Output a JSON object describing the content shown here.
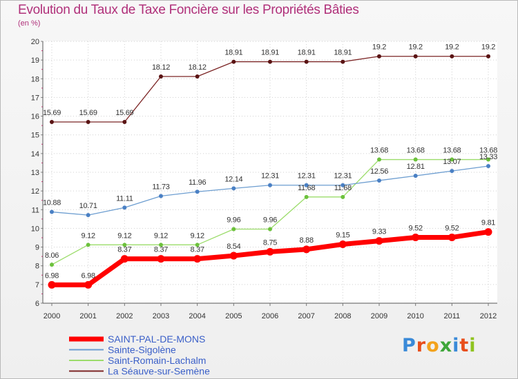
{
  "title": "Evolution du Taux de Taxe Foncière sur les Propriétés Bâties",
  "subtitle": "(en %)",
  "logo": {
    "letters": [
      "P",
      "r",
      "o",
      "x",
      "i",
      "t",
      "i"
    ],
    "colors": [
      "#3a8ad8",
      "#e84e1b",
      "#f3a21c",
      "#3ea63a",
      "#3a8ad8",
      "#e84e1b",
      "#8fc31f"
    ]
  },
  "chart_data": {
    "type": "line",
    "title": "Evolution du Taux de Taxe Foncière sur les Propriétés Bâties",
    "ylabel": "(en %)",
    "xlabel": "",
    "x": [
      "2000",
      "2001",
      "2002",
      "2003",
      "2004",
      "2005",
      "2006",
      "2007",
      "2008",
      "2009",
      "2010",
      "2011",
      "2012"
    ],
    "ylim": [
      6,
      20
    ],
    "yticks": [
      "6",
      "7",
      "8",
      "9",
      "10",
      "11",
      "12",
      "13",
      "14",
      "15",
      "16",
      "17",
      "18",
      "19",
      "20"
    ],
    "grid": true,
    "legend": "bottom-left",
    "series": [
      {
        "name": "SAINT-PAL-DE-MONS",
        "color": "#ff0000",
        "values": [
          6.98,
          6.98,
          8.37,
          8.37,
          8.37,
          8.54,
          8.75,
          8.88,
          9.15,
          9.33,
          9.52,
          9.52,
          9.81
        ],
        "labels": [
          "6.98",
          "6.98",
          "8.37",
          "8.37",
          "8.37",
          "8.54",
          "8.75",
          "8.88",
          "9.15",
          "9.33",
          "9.52",
          "9.52",
          "9.81"
        ]
      },
      {
        "name": "Sainte-Sigolène",
        "color": "#6c9dd0",
        "values": [
          10.88,
          10.71,
          11.11,
          11.73,
          11.96,
          12.14,
          12.31,
          12.31,
          12.31,
          12.56,
          12.81,
          13.07,
          13.33
        ],
        "labels": [
          "10.88",
          "10.71",
          "11.11",
          "11.73",
          "11.96",
          "12.14",
          "12.31",
          "12.31",
          "12.31",
          "12.56",
          "12.81",
          "13.07",
          "13.33"
        ]
      },
      {
        "name": "Saint-Romain-Lachalm",
        "color": "#9bdc6a",
        "values": [
          8.06,
          9.12,
          9.12,
          9.12,
          9.12,
          9.96,
          9.96,
          11.68,
          11.68,
          13.68,
          13.68,
          13.68,
          13.68
        ],
        "labels": [
          "8.06",
          "9.12",
          "9.12",
          "9.12",
          "9.12",
          "9.96",
          "9.96",
          "11.68",
          "11.68",
          "13.68",
          "13.68",
          "13.68",
          "13.68"
        ]
      },
      {
        "name": "La Séauve-sur-Semène",
        "color": "#7b2424",
        "values": [
          15.69,
          15.69,
          15.69,
          18.12,
          18.12,
          18.91,
          18.91,
          18.91,
          18.91,
          19.2,
          19.2,
          19.2,
          19.2
        ],
        "labels": [
          "15.69",
          "15.69",
          "15.69",
          "18.12",
          "18.12",
          "18.91",
          "18.91",
          "18.91",
          "18.91",
          "19.2",
          "19.2",
          "19.2",
          "19.2"
        ]
      }
    ]
  }
}
